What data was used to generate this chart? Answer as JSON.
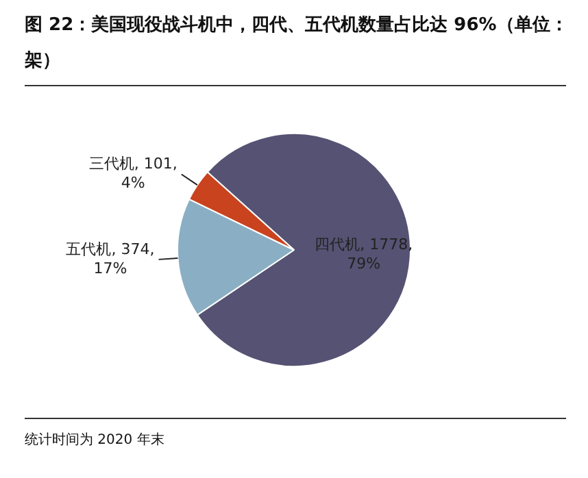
{
  "chart_data": {
    "type": "pie",
    "title": "图 22：美国现役战斗机中，四代、五代机数量占比达 96%（单位：架）",
    "categories": [
      "四代机",
      "五代机",
      "三代机"
    ],
    "values": [
      1778,
      374,
      101
    ],
    "value_labels": [
      "1778, 79%",
      "374, 17%",
      "101, 4%"
    ],
    "colors": [
      "#565273",
      "#8aafc4",
      "#c9431f"
    ],
    "annotations": [
      "统计时间为 2020 年末"
    ],
    "legend": false
  }
}
